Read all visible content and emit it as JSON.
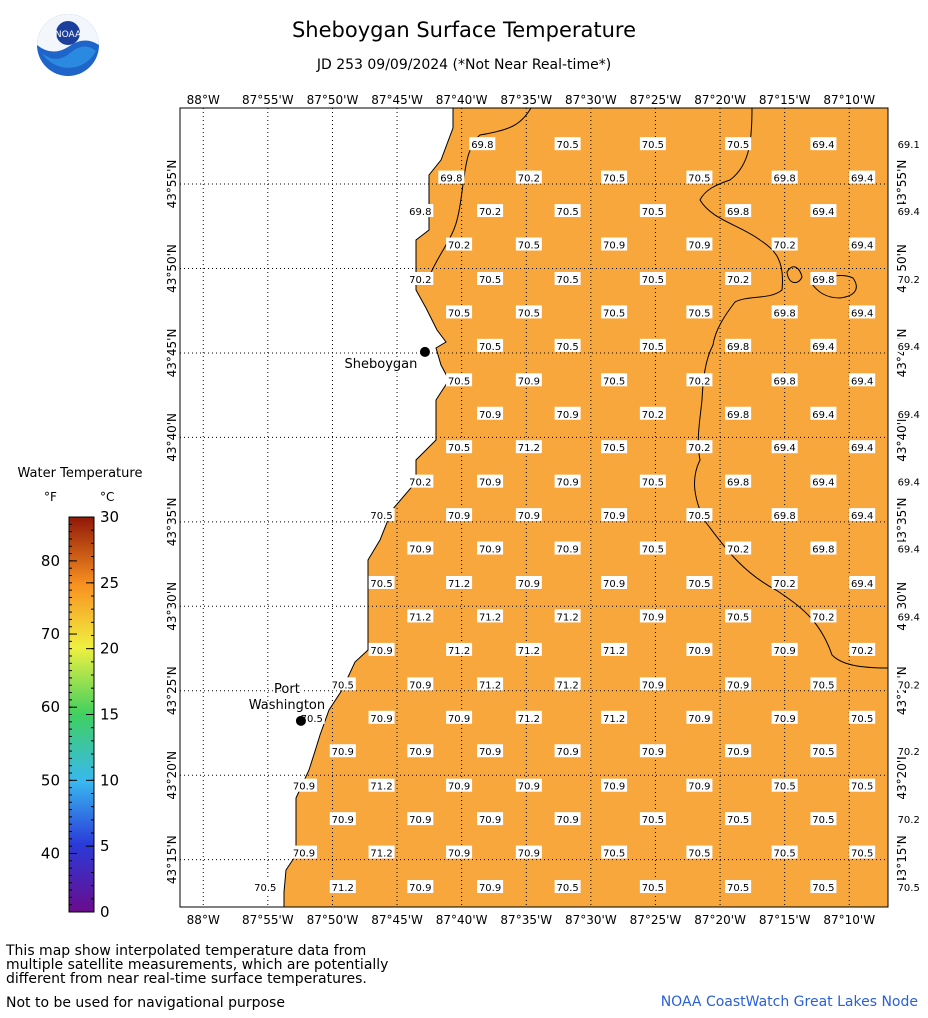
{
  "header": {
    "title": "Sheboygan Surface Temperature",
    "subtitle": "JD 253 09/09/2024 (*Not Near Real-time*)"
  },
  "logo": {
    "icon": "noaa-logo-icon",
    "text": "NOAA"
  },
  "legend": {
    "title": "Water Temperature",
    "unit_f": "°F",
    "unit_c": "°C",
    "f_ticks": [
      {
        "label": "80",
        "value": 80
      },
      {
        "label": "70",
        "value": 70
      },
      {
        "label": "60",
        "value": 60
      },
      {
        "label": "50",
        "value": 50
      },
      {
        "label": "40",
        "value": 40
      }
    ],
    "c_ticks": [
      {
        "label": "30",
        "value": 30
      },
      {
        "label": "25",
        "value": 25
      },
      {
        "label": "20",
        "value": 20
      },
      {
        "label": "15",
        "value": 15
      },
      {
        "label": "10",
        "value": 10
      },
      {
        "label": "5",
        "value": 5
      },
      {
        "label": "0",
        "value": 0
      }
    ]
  },
  "map": {
    "lon_labels": [
      "88°W",
      "87°55'W",
      "87°50'W",
      "87°45'W",
      "87°40'W",
      "87°35'W",
      "87°30'W",
      "87°25'W",
      "87°20'W",
      "87°15'W",
      "87°10'W"
    ],
    "lat_labels": [
      "43°55'N",
      "43°50'N",
      "43°45'N",
      "43°40'N",
      "43°35'N",
      "43°30'N",
      "43°25'N",
      "43°20'N",
      "43°15'N"
    ],
    "lat_values": [
      43.9167,
      43.8333,
      43.75,
      43.6667,
      43.5833,
      43.5,
      43.4167,
      43.3333,
      43.25
    ],
    "water_color": "#f8a73c",
    "land_color": "#ffffff",
    "cities": [
      {
        "name": "Sheboygan",
        "lines": [
          "Sheboygan"
        ],
        "lon": -87.714,
        "lat": 43.751
      },
      {
        "name": "Port Washington",
        "lines": [
          "Port",
          "Washington"
        ],
        "lon": -87.874,
        "lat": 43.387
      }
    ],
    "temp_rows": [
      {
        "lat": 43.956,
        "cells": [
          [
            -87.64,
            "69.8"
          ],
          [
            -87.53,
            "70.5"
          ],
          [
            -87.42,
            "70.5"
          ],
          [
            -87.31,
            "70.5"
          ],
          [
            -87.2,
            "69.4"
          ],
          [
            -87.09,
            "69.1"
          ]
        ]
      },
      {
        "lat": 43.923,
        "cells": [
          [
            -87.68,
            "69.8"
          ],
          [
            -87.58,
            "70.2"
          ],
          [
            -87.47,
            "70.5"
          ],
          [
            -87.36,
            "70.5"
          ],
          [
            -87.25,
            "69.8"
          ],
          [
            -87.15,
            "69.4"
          ],
          [
            -87.04,
            "69.1"
          ]
        ]
      },
      {
        "lat": 43.89,
        "cells": [
          [
            -87.72,
            "69.8"
          ],
          [
            -87.63,
            "70.2"
          ],
          [
            -87.53,
            "70.5"
          ],
          [
            -87.42,
            "70.5"
          ],
          [
            -87.31,
            "69.8"
          ],
          [
            -87.2,
            "69.4"
          ],
          [
            -87.09,
            "69.4"
          ]
        ]
      },
      {
        "lat": 43.857,
        "cells": [
          [
            -87.67,
            "70.2"
          ],
          [
            -87.58,
            "70.5"
          ],
          [
            -87.47,
            "70.9"
          ],
          [
            -87.36,
            "70.9"
          ],
          [
            -87.25,
            "70.2"
          ],
          [
            -87.15,
            "69.4"
          ],
          [
            -87.04,
            "69.1"
          ]
        ]
      },
      {
        "lat": 43.823,
        "cells": [
          [
            -87.72,
            "70.2"
          ],
          [
            -87.63,
            "70.5"
          ],
          [
            -87.53,
            "70.5"
          ],
          [
            -87.42,
            "70.5"
          ],
          [
            -87.31,
            "70.2"
          ],
          [
            -87.2,
            "69.8"
          ],
          [
            -87.09,
            "70.2"
          ]
        ]
      },
      {
        "lat": 43.79,
        "cells": [
          [
            -87.67,
            "70.5"
          ],
          [
            -87.58,
            "70.5"
          ],
          [
            -87.47,
            "70.5"
          ],
          [
            -87.36,
            "70.5"
          ],
          [
            -87.25,
            "69.8"
          ],
          [
            -87.15,
            "69.4"
          ],
          [
            -87.04,
            "69.1"
          ]
        ]
      },
      {
        "lat": 43.757,
        "cells": [
          [
            -87.63,
            "70.5"
          ],
          [
            -87.53,
            "70.5"
          ],
          [
            -87.42,
            "70.5"
          ],
          [
            -87.31,
            "69.8"
          ],
          [
            -87.2,
            "69.4"
          ],
          [
            -87.09,
            "69.4"
          ]
        ]
      },
      {
        "lat": 43.723,
        "cells": [
          [
            -87.67,
            "70.5"
          ],
          [
            -87.58,
            "70.9"
          ],
          [
            -87.47,
            "70.5"
          ],
          [
            -87.36,
            "70.2"
          ],
          [
            -87.25,
            "69.8"
          ],
          [
            -87.15,
            "69.4"
          ],
          [
            -87.04,
            "69.4"
          ]
        ]
      },
      {
        "lat": 43.69,
        "cells": [
          [
            -87.63,
            "70.9"
          ],
          [
            -87.53,
            "70.9"
          ],
          [
            -87.42,
            "70.2"
          ],
          [
            -87.31,
            "69.8"
          ],
          [
            -87.2,
            "69.4"
          ],
          [
            -87.09,
            "69.4"
          ]
        ]
      },
      {
        "lat": 43.657,
        "cells": [
          [
            -87.67,
            "70.5"
          ],
          [
            -87.58,
            "71.2"
          ],
          [
            -87.47,
            "70.5"
          ],
          [
            -87.36,
            "70.2"
          ],
          [
            -87.25,
            "69.4"
          ],
          [
            -87.15,
            "69.4"
          ],
          [
            -87.04,
            "69.1"
          ]
        ]
      },
      {
        "lat": 43.623,
        "cells": [
          [
            -87.72,
            "70.2"
          ],
          [
            -87.63,
            "70.9"
          ],
          [
            -87.53,
            "70.9"
          ],
          [
            -87.42,
            "70.5"
          ],
          [
            -87.31,
            "69.8"
          ],
          [
            -87.2,
            "69.4"
          ],
          [
            -87.09,
            "69.4"
          ]
        ]
      },
      {
        "lat": 43.59,
        "cells": [
          [
            -87.77,
            "70.5"
          ],
          [
            -87.67,
            "70.9"
          ],
          [
            -87.58,
            "70.9"
          ],
          [
            -87.47,
            "70.9"
          ],
          [
            -87.36,
            "70.5"
          ],
          [
            -87.25,
            "69.8"
          ],
          [
            -87.15,
            "69.4"
          ],
          [
            -87.04,
            "69.1"
          ]
        ]
      },
      {
        "lat": 43.557,
        "cells": [
          [
            -87.72,
            "70.9"
          ],
          [
            -87.63,
            "70.9"
          ],
          [
            -87.53,
            "70.9"
          ],
          [
            -87.42,
            "70.5"
          ],
          [
            -87.31,
            "70.2"
          ],
          [
            -87.2,
            "69.8"
          ],
          [
            -87.09,
            "69.4"
          ]
        ]
      },
      {
        "lat": 43.523,
        "cells": [
          [
            -87.77,
            "70.5"
          ],
          [
            -87.67,
            "71.2"
          ],
          [
            -87.58,
            "70.9"
          ],
          [
            -87.47,
            "70.9"
          ],
          [
            -87.36,
            "70.5"
          ],
          [
            -87.25,
            "70.2"
          ],
          [
            -87.15,
            "69.4"
          ],
          [
            -87.04,
            "69.4"
          ]
        ]
      },
      {
        "lat": 43.49,
        "cells": [
          [
            -87.72,
            "71.2"
          ],
          [
            -87.63,
            "71.2"
          ],
          [
            -87.53,
            "71.2"
          ],
          [
            -87.42,
            "70.9"
          ],
          [
            -87.31,
            "70.5"
          ],
          [
            -87.2,
            "70.2"
          ],
          [
            -87.09,
            "69.4"
          ]
        ]
      },
      {
        "lat": 43.457,
        "cells": [
          [
            -87.77,
            "70.9"
          ],
          [
            -87.67,
            "71.2"
          ],
          [
            -87.58,
            "71.2"
          ],
          [
            -87.47,
            "71.2"
          ],
          [
            -87.36,
            "70.9"
          ],
          [
            -87.25,
            "70.9"
          ],
          [
            -87.15,
            "70.2"
          ],
          [
            -87.04,
            "69.8"
          ]
        ]
      },
      {
        "lat": 43.423,
        "cells": [
          [
            -87.82,
            "70.5"
          ],
          [
            -87.72,
            "70.9"
          ],
          [
            -87.63,
            "71.2"
          ],
          [
            -87.53,
            "71.2"
          ],
          [
            -87.42,
            "70.9"
          ],
          [
            -87.31,
            "70.9"
          ],
          [
            -87.2,
            "70.5"
          ],
          [
            -87.09,
            "70.2"
          ]
        ]
      },
      {
        "lat": 43.39,
        "cells": [
          [
            -87.86,
            "70.5"
          ],
          [
            -87.77,
            "70.9"
          ],
          [
            -87.67,
            "70.9"
          ],
          [
            -87.58,
            "71.2"
          ],
          [
            -87.47,
            "71.2"
          ],
          [
            -87.36,
            "70.9"
          ],
          [
            -87.25,
            "70.9"
          ],
          [
            -87.15,
            "70.5"
          ],
          [
            -87.04,
            "70.2"
          ]
        ]
      },
      {
        "lat": 43.357,
        "cells": [
          [
            -87.82,
            "70.9"
          ],
          [
            -87.72,
            "70.9"
          ],
          [
            -87.63,
            "70.9"
          ],
          [
            -87.53,
            "70.9"
          ],
          [
            -87.42,
            "70.9"
          ],
          [
            -87.31,
            "70.9"
          ],
          [
            -87.2,
            "70.5"
          ],
          [
            -87.09,
            "70.2"
          ]
        ]
      },
      {
        "lat": 43.323,
        "cells": [
          [
            -87.87,
            "70.9"
          ],
          [
            -87.77,
            "71.2"
          ],
          [
            -87.67,
            "70.9"
          ],
          [
            -87.58,
            "70.9"
          ],
          [
            -87.47,
            "70.9"
          ],
          [
            -87.36,
            "70.9"
          ],
          [
            -87.25,
            "70.5"
          ],
          [
            -87.15,
            "70.5"
          ],
          [
            -87.04,
            "70.2"
          ]
        ]
      },
      {
        "lat": 43.29,
        "cells": [
          [
            -87.82,
            "70.9"
          ],
          [
            -87.72,
            "70.9"
          ],
          [
            -87.63,
            "70.9"
          ],
          [
            -87.53,
            "70.9"
          ],
          [
            -87.42,
            "70.5"
          ],
          [
            -87.31,
            "70.5"
          ],
          [
            -87.2,
            "70.5"
          ],
          [
            -87.09,
            "70.2"
          ]
        ]
      },
      {
        "lat": 43.257,
        "cells": [
          [
            -87.87,
            "70.9"
          ],
          [
            -87.77,
            "71.2"
          ],
          [
            -87.67,
            "70.9"
          ],
          [
            -87.58,
            "70.9"
          ],
          [
            -87.47,
            "70.5"
          ],
          [
            -87.36,
            "70.5"
          ],
          [
            -87.25,
            "70.5"
          ],
          [
            -87.15,
            "70.5"
          ],
          [
            -87.04,
            "70.2"
          ]
        ]
      },
      {
        "lat": 43.223,
        "cells": [
          [
            -87.92,
            "70.5"
          ],
          [
            -87.82,
            "71.2"
          ],
          [
            -87.72,
            "70.9"
          ],
          [
            -87.63,
            "70.9"
          ],
          [
            -87.53,
            "70.5"
          ],
          [
            -87.42,
            "70.5"
          ],
          [
            -87.31,
            "70.5"
          ],
          [
            -87.2,
            "70.5"
          ],
          [
            -87.09,
            "70.5"
          ]
        ]
      }
    ]
  },
  "footer": {
    "note_lines": [
      "This map show interpolated temperature data from",
      "multiple satellite measurements, which are potentially",
      "different from near real-time surface temperatures."
    ],
    "nav_warning": "Not to be used for navigational purpose",
    "credit": "NOAA CoastWatch Great Lakes Node"
  }
}
